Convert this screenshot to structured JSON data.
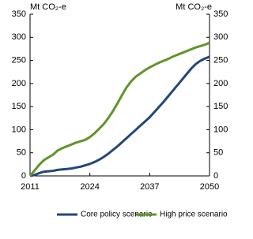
{
  "chart_data": {
    "type": "line",
    "y_label": "Mt CO₂-e",
    "y2_label": "Mt CO₂-e",
    "x": [
      2011,
      2012,
      2013,
      2014,
      2015,
      2016,
      2017,
      2018,
      2019,
      2020,
      2021,
      2022,
      2023,
      2024,
      2025,
      2026,
      2027,
      2028,
      2029,
      2030,
      2031,
      2032,
      2033,
      2034,
      2035,
      2036,
      2037,
      2038,
      2039,
      2040,
      2041,
      2042,
      2043,
      2044,
      2045,
      2046,
      2047,
      2048,
      2049,
      2050
    ],
    "series": [
      {
        "name": "Core policy scenario",
        "color": "#24467a",
        "values": [
          0,
          2,
          6,
          9,
          10,
          11,
          13,
          14,
          15,
          16,
          18,
          20,
          23,
          26,
          30,
          35,
          41,
          48,
          56,
          64,
          73,
          82,
          91,
          100,
          109,
          118,
          127,
          138,
          149,
          160,
          172,
          184,
          196,
          208,
          220,
          232,
          242,
          249,
          254,
          258
        ]
      },
      {
        "name": "High price scenario",
        "color": "#62942a",
        "values": [
          0,
          12,
          24,
          34,
          40,
          46,
          55,
          60,
          64,
          68,
          72,
          75,
          78,
          84,
          92,
          102,
          112,
          125,
          140,
          157,
          175,
          192,
          205,
          215,
          222,
          229,
          235,
          240,
          245,
          249,
          253,
          258,
          262,
          266,
          270,
          274,
          278,
          281,
          284,
          288
        ]
      }
    ],
    "xlim": [
      2011,
      2050
    ],
    "xticks": [
      2011,
      2024,
      2037,
      2050
    ],
    "ylim": [
      0,
      350
    ],
    "yticks": [
      0,
      50,
      100,
      150,
      200,
      250,
      300,
      350
    ],
    "y2lim": [
      0,
      350
    ],
    "y2ticks": [
      0,
      50,
      100,
      150,
      200,
      250,
      300,
      350
    ],
    "grid": false,
    "legend": "bottom"
  }
}
